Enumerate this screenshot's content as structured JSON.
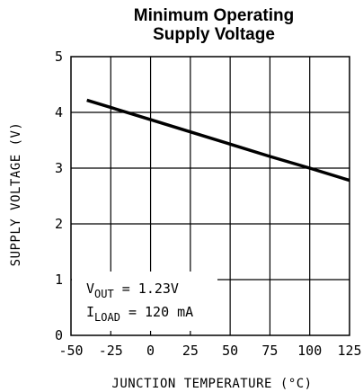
{
  "chart_data": {
    "type": "line",
    "title_lines": [
      "Minimum Operating",
      "Supply Voltage"
    ],
    "xlabel": "JUNCTION TEMPERATURE (°C)",
    "ylabel": "SUPPLY VOLTAGE (V)",
    "xlim": [
      -50,
      125
    ],
    "ylim": [
      0,
      5
    ],
    "x_ticks": [
      "-50",
      "-25",
      "0",
      "25",
      "50",
      "75",
      "100",
      "125"
    ],
    "y_ticks": [
      "0",
      "1",
      "2",
      "3",
      "4",
      "5"
    ],
    "grid": true,
    "series": [
      {
        "x": [
          -40,
          0,
          25,
          50,
          75,
          100,
          125
        ],
        "y": [
          4.22,
          3.87,
          3.65,
          3.43,
          3.21,
          3.0,
          2.78
        ]
      }
    ],
    "annotation": {
      "line1_main": "V",
      "line1_sub": "OUT",
      "line1_value": " = 1.23V",
      "line2_main": "I",
      "line2_sub": "LOAD",
      "line2_value": " = 120 mA"
    },
    "colors": {
      "line": "#000000",
      "grid": "#000000",
      "background": "#ffffff"
    }
  }
}
